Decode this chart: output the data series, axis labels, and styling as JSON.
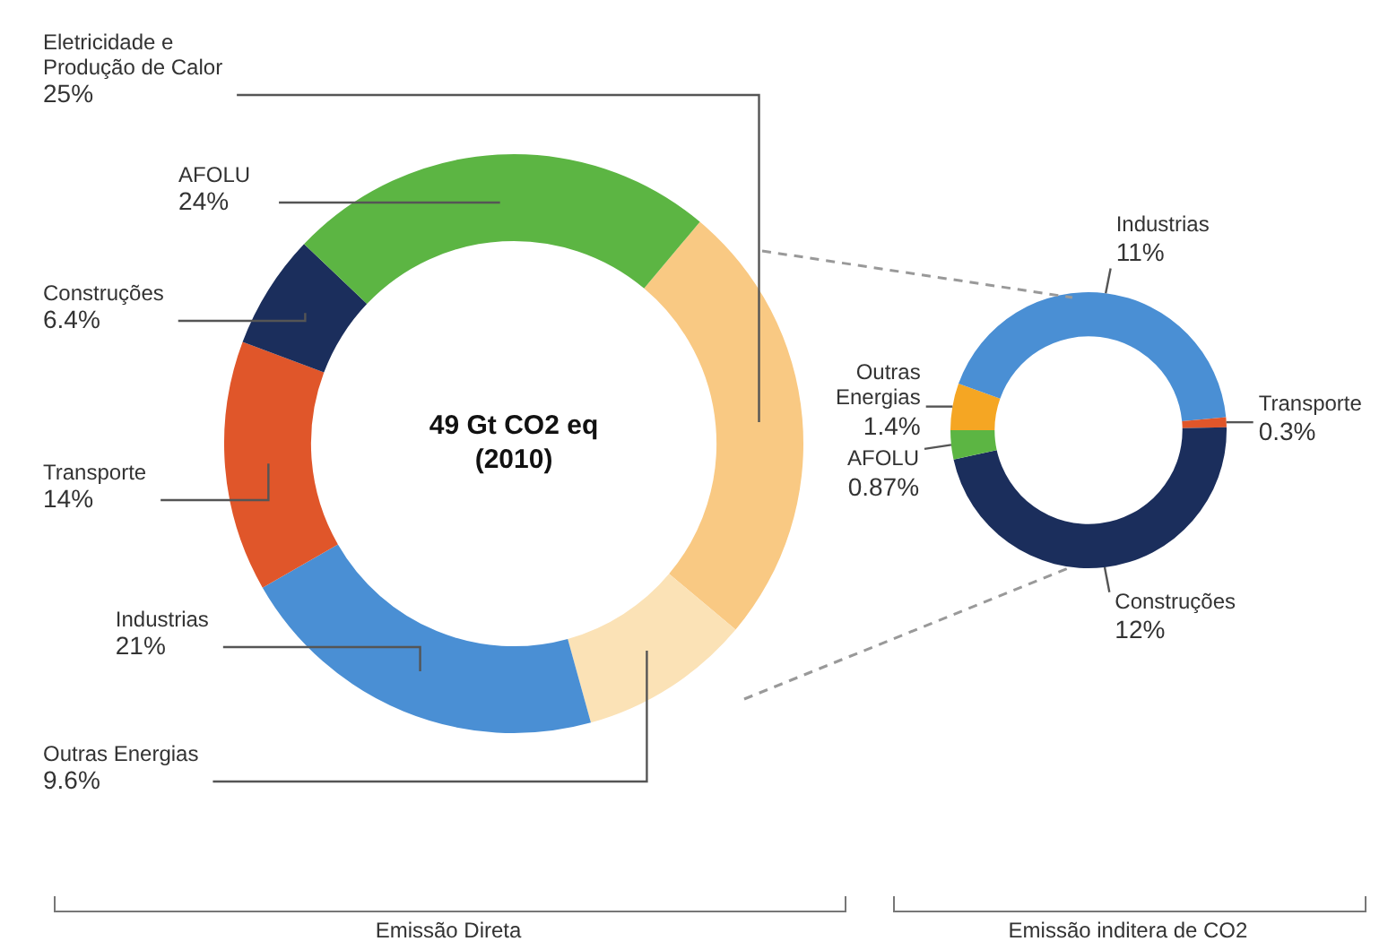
{
  "chart_data": [
    {
      "type": "donut",
      "categories": [
        "Eletricidade e Produção de Calor",
        "Outras Energias",
        "Industrias",
        "Transporte",
        "Construções",
        "AFOLU"
      ],
      "values": [
        25,
        9.6,
        21,
        14,
        6.4,
        24
      ],
      "value_labels": [
        "25%",
        "9.6%",
        "21%",
        "14%",
        "6.4%",
        "24%"
      ],
      "colors": [
        "#f9c983",
        "#fbe2b6",
        "#4a8fd4",
        "#e0562a",
        "#1b2e5c",
        "#5cb543"
      ],
      "annotations": [
        "49 Gt CO2 eq",
        "(2010)"
      ],
      "xlabel": "Emissão Direta"
    },
    {
      "type": "donut",
      "categories": [
        "Outras Energias",
        "Industrias",
        "Transporte",
        "Construções",
        "AFOLU"
      ],
      "values": [
        1.4,
        11,
        0.3,
        12,
        0.87
      ],
      "value_labels": [
        "1.4%",
        "11%",
        "0.3%",
        "12%",
        "0.87%"
      ],
      "colors": [
        "#f5a623",
        "#4a8fd4",
        "#e0562a",
        "#1b2e5c",
        "#5cb543"
      ],
      "xlabel": "Emissão inditera de CO2"
    }
  ]
}
